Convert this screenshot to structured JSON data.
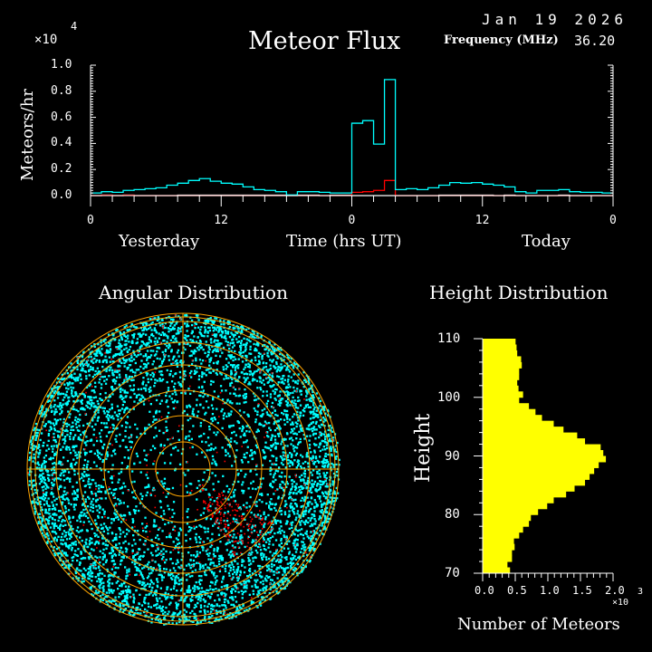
{
  "header": {
    "title": "Meteor Flux",
    "date": "Jan 19 2026",
    "frequency_label": "Frequency (MHz)",
    "frequency_value": "36.20"
  },
  "chart_data": [
    {
      "type": "line",
      "title": "Meteor Flux",
      "ylabel": "Meteors/hr",
      "xlabel": "Time (hrs UT)",
      "y_multiplier": "×10",
      "y_multiplier_exp": "4",
      "ylim": [
        0,
        1.0
      ],
      "ytick_labels": [
        "0.0",
        "0.2",
        "0.4",
        "0.6",
        "0.8",
        "1.0"
      ],
      "xtick_labels": [
        "0",
        "12",
        "0",
        "12",
        "0"
      ],
      "day_labels": [
        "Yesterday",
        "Today"
      ],
      "step": true,
      "series_colors": [
        "#00ffff",
        "#ff0000",
        "#ffffff"
      ],
      "series": [
        {
          "values": [
            0.02,
            0.03,
            0.025,
            0.04,
            0.046,
            0.053,
            0.06,
            0.08,
            0.095,
            0.116,
            0.13,
            0.11,
            0.095,
            0.088,
            0.067,
            0.046,
            0.04,
            0.03,
            0.005,
            0.03,
            0.03,
            0.025,
            0.02,
            0.02,
            0.555,
            0.575,
            0.395,
            0.89,
            0.046,
            0.053,
            0.046,
            0.06,
            0.08,
            0.1,
            0.095,
            0.1,
            0.088,
            0.08,
            0.067,
            0.03,
            0.02,
            0.04,
            0.04,
            0.046,
            0.03,
            0.025,
            0.025,
            0.02
          ]
        },
        {
          "values": [
            0.0,
            0.003,
            0.0,
            0.003,
            0.0,
            0.0,
            0.0,
            0.0,
            0.0,
            0.0,
            0.0,
            0.0,
            0.0,
            0.0,
            0.0,
            0.0,
            0.0,
            0.0,
            0.0,
            0.0,
            0.0,
            0.0,
            0.0,
            0.0,
            0.025,
            0.03,
            0.04,
            0.116,
            0.0,
            0.0,
            0.0,
            0.0,
            0.0,
            0.0,
            0.0,
            0.0,
            0.0,
            0.0,
            0.0,
            0.0,
            0.0,
            0.0,
            0.0,
            0.0,
            0.0,
            0.0,
            0.0,
            0.0
          ]
        },
        {
          "values": [
            0.0,
            0.003,
            0.0,
            0.003,
            0.0,
            0.0,
            0.0,
            0.0,
            0.003,
            0.003,
            0.003,
            0.003,
            0.003,
            0.003,
            0.003,
            0.003,
            0.003,
            0.003,
            0.0,
            0.003,
            0.003,
            0.0,
            0.003,
            0.003,
            0.0,
            0.0,
            0.0,
            0.0,
            0.0,
            0.0,
            0.0,
            0.0,
            0.003,
            0.003,
            0.003,
            0.003,
            0.003,
            0.0,
            0.003,
            0.0,
            0.0,
            0.0,
            0.0,
            0.003,
            0.0,
            0.0,
            0.0,
            0.0
          ]
        }
      ]
    },
    {
      "type": "scatter",
      "title": "Angular Distribution",
      "projection": "polar",
      "colors": {
        "points": "#00ffff",
        "highlight": "#ff0000",
        "grid": "#ffa500"
      }
    },
    {
      "type": "bar",
      "orientation": "horizontal",
      "title": "Height Distribution",
      "ylabel": "Height",
      "xlabel": "Number of Meteors",
      "x_multiplier": "×10",
      "x_multiplier_exp": "3",
      "xlim": [
        0,
        2.0
      ],
      "ylim": [
        70,
        110
      ],
      "xtick_labels": [
        "0.0",
        "0.5",
        "1.0",
        "1.5",
        "2.0"
      ],
      "ytick_labels": [
        "70",
        "80",
        "90",
        "100",
        "110"
      ],
      "color": "#ffff00",
      "heights": [
        70,
        71,
        72,
        73,
        74,
        75,
        76,
        77,
        78,
        79,
        80,
        81,
        82,
        83,
        84,
        85,
        86,
        87,
        88,
        89,
        90,
        91,
        92,
        93,
        94,
        95,
        96,
        97,
        98,
        99,
        100,
        101,
        102,
        103,
        104,
        105,
        106,
        107,
        108,
        109
      ],
      "values": [
        0.42,
        0.38,
        0.45,
        0.45,
        0.49,
        0.48,
        0.56,
        0.62,
        0.71,
        0.74,
        0.85,
        0.99,
        1.09,
        1.28,
        1.41,
        1.57,
        1.64,
        1.71,
        1.78,
        1.89,
        1.85,
        1.81,
        1.57,
        1.45,
        1.24,
        1.09,
        0.91,
        0.81,
        0.71,
        0.56,
        0.62,
        0.55,
        0.53,
        0.56,
        0.56,
        0.6,
        0.59,
        0.53,
        0.52,
        0.505
      ]
    }
  ]
}
